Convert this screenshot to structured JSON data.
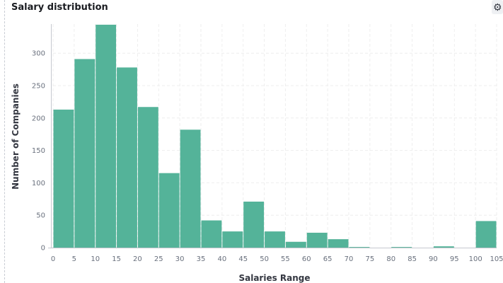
{
  "panel": {
    "title": "Salary distribution",
    "options_icon": "gear-icon"
  },
  "colors": {
    "bar_fill": "#54b399",
    "grid": "#eeeeee",
    "axis": "#c5c8cf"
  },
  "chart_data": {
    "type": "bar",
    "xlabel": "Salaries Range",
    "ylabel": "Number of Companies",
    "bin_width": 5,
    "xlim": [
      0,
      105
    ],
    "ylim": [
      0,
      345
    ],
    "xticks": [
      0,
      5,
      10,
      15,
      20,
      25,
      30,
      35,
      40,
      45,
      50,
      55,
      60,
      65,
      70,
      75,
      80,
      85,
      90,
      95,
      100,
      105
    ],
    "xtick_labels": [
      "0",
      "5",
      "10",
      "15",
      "20",
      "25",
      "30",
      "35",
      "40",
      "45",
      "50",
      "55",
      "60",
      "65",
      "70",
      "75",
      "80",
      "85",
      "90",
      "95",
      "100",
      "105"
    ],
    "yticks": [
      0,
      50,
      100,
      150,
      200,
      250,
      300
    ],
    "ytick_labels": [
      "0",
      "50",
      "100",
      "150",
      "200",
      "250",
      "300"
    ],
    "grid": true,
    "bins": [
      {
        "x": 0,
        "value": 213
      },
      {
        "x": 5,
        "value": 291
      },
      {
        "x": 10,
        "value": 344
      },
      {
        "x": 15,
        "value": 278
      },
      {
        "x": 20,
        "value": 217
      },
      {
        "x": 25,
        "value": 115
      },
      {
        "x": 30,
        "value": 182
      },
      {
        "x": 35,
        "value": 42
      },
      {
        "x": 40,
        "value": 25
      },
      {
        "x": 45,
        "value": 71
      },
      {
        "x": 50,
        "value": 25
      },
      {
        "x": 55,
        "value": 9
      },
      {
        "x": 60,
        "value": 23
      },
      {
        "x": 65,
        "value": 13
      },
      {
        "x": 70,
        "value": 1
      },
      {
        "x": 75,
        "value": 0
      },
      {
        "x": 80,
        "value": 1
      },
      {
        "x": 85,
        "value": 0
      },
      {
        "x": 90,
        "value": 2
      },
      {
        "x": 95,
        "value": 0
      },
      {
        "x": 100,
        "value": 41
      }
    ]
  }
}
